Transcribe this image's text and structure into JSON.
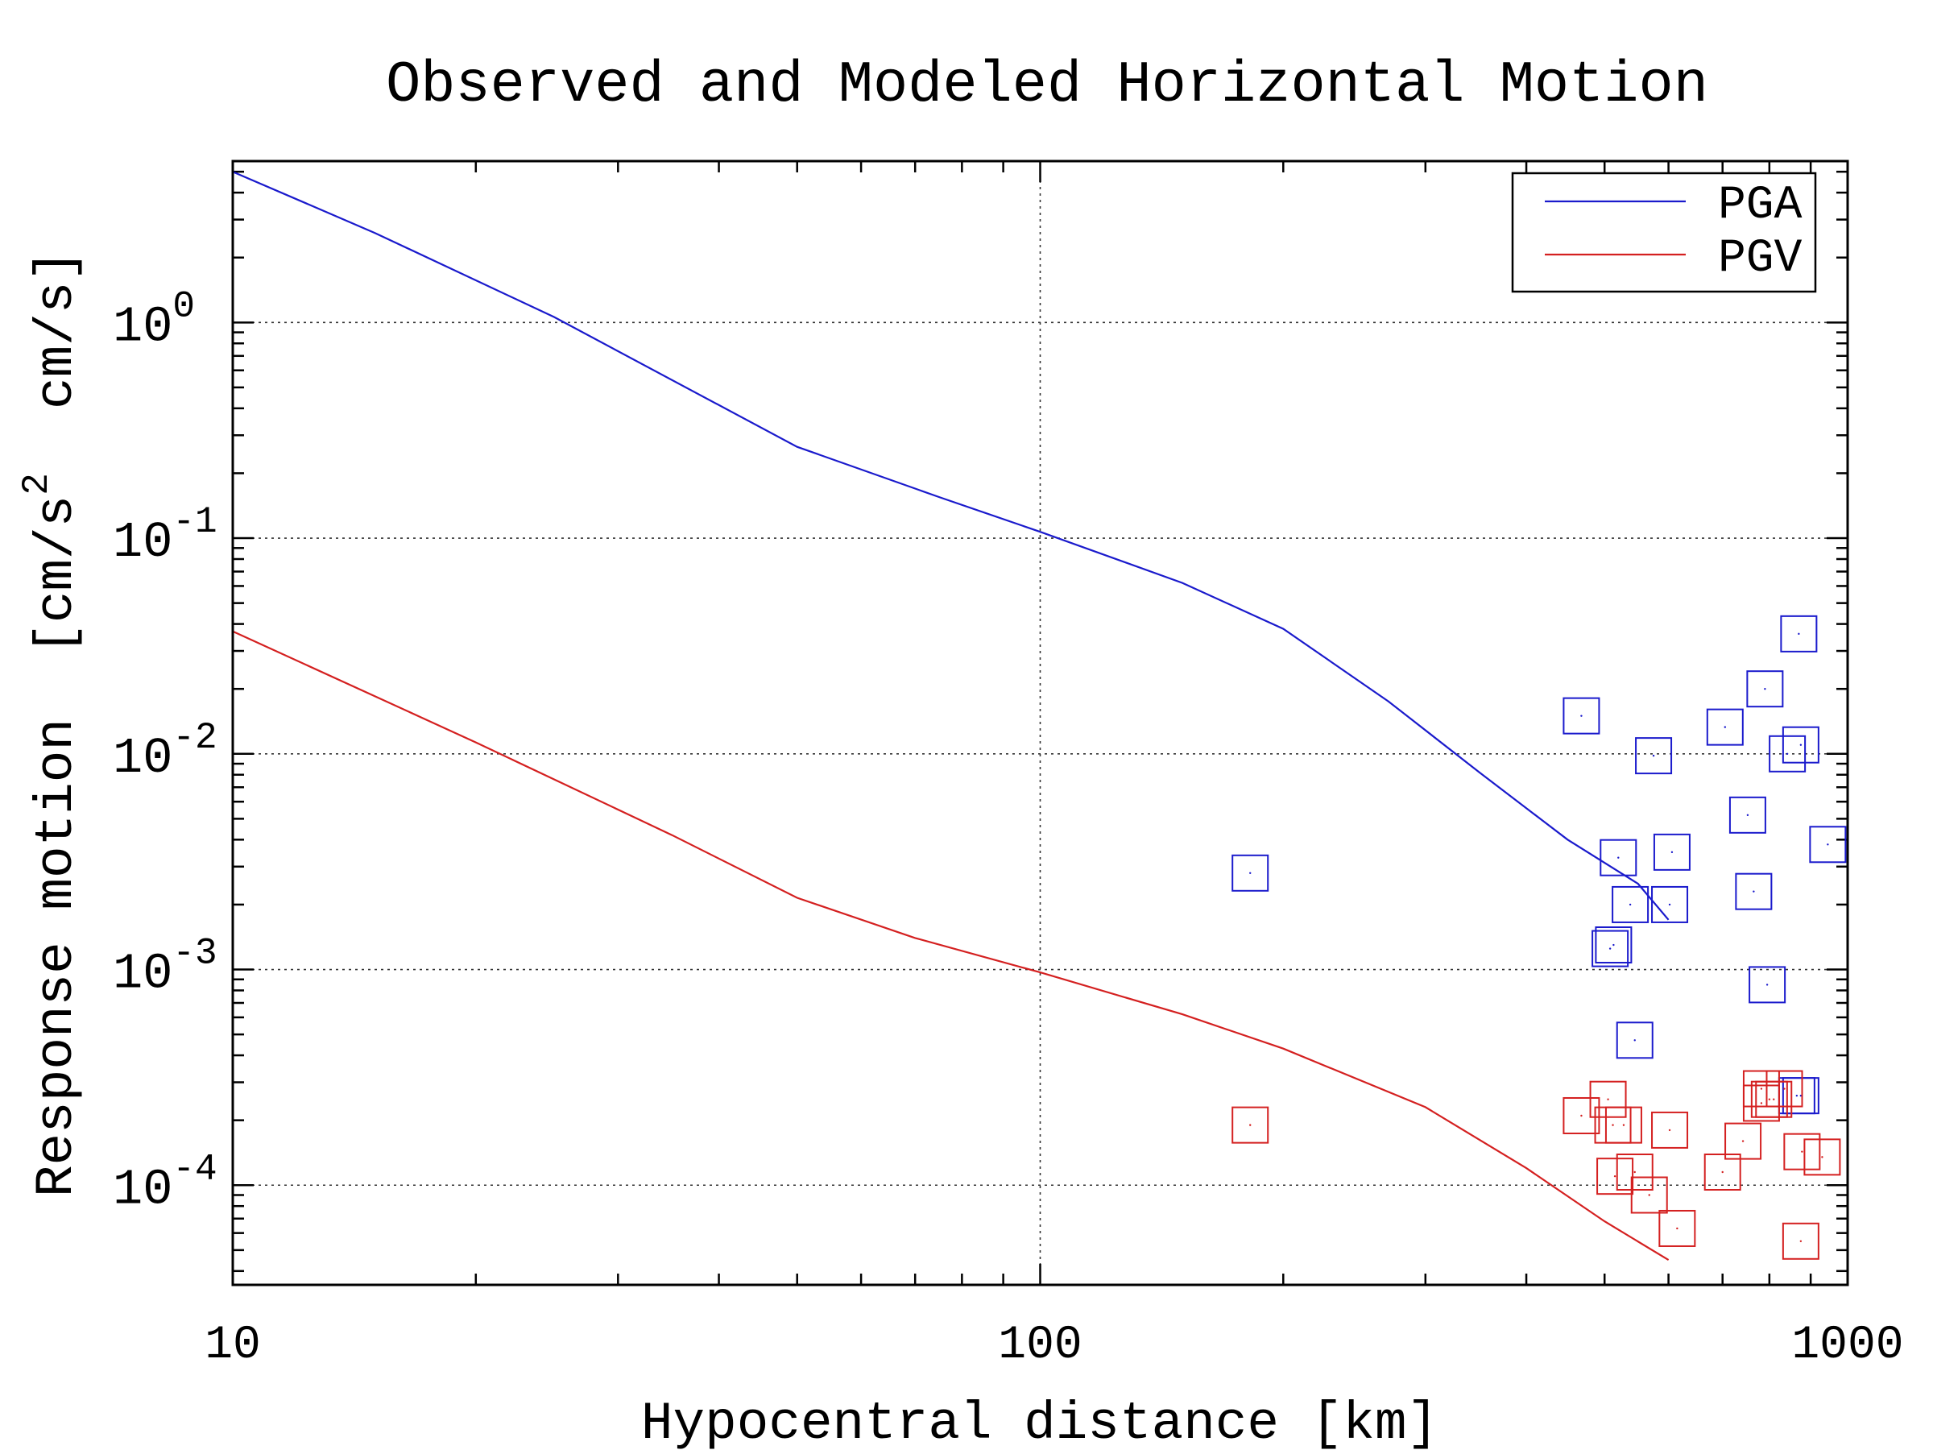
{
  "chart_data": {
    "type": "scatter",
    "title": "Observed and Modeled Horizontal Motion",
    "xlabel": "Hypocentral distance [km]",
    "ylabel_parts": [
      "Response motion  [cm/s",
      "2",
      "  cm/s]"
    ],
    "x_scale": "log",
    "y_scale": "log",
    "xlim": [
      10,
      1000
    ],
    "ylim": [
      3.45e-05,
      5.6
    ],
    "x_ticks": [
      {
        "value": 10,
        "label": "10"
      },
      {
        "value": 100,
        "label": "100"
      },
      {
        "value": 1000,
        "label": "1000"
      }
    ],
    "y_ticks": [
      {
        "value": 1,
        "base": "10",
        "exp": "0"
      },
      {
        "value": 0.1,
        "base": "10",
        "exp": "-1"
      },
      {
        "value": 0.01,
        "base": "10",
        "exp": "-2"
      },
      {
        "value": 0.001,
        "base": "10",
        "exp": "-3"
      },
      {
        "value": 0.0001,
        "base": "10",
        "exp": "-4"
      }
    ],
    "grid": true,
    "legend_position": "top-right",
    "series": [
      {
        "name": "PGA",
        "kind": "line",
        "color": "#1a1acc",
        "points": [
          [
            10,
            5.0
          ],
          [
            15,
            2.6
          ],
          [
            25,
            1.06
          ],
          [
            50,
            0.265
          ],
          [
            75,
            0.155
          ],
          [
            100,
            0.107
          ],
          [
            150,
            0.062
          ],
          [
            200,
            0.038
          ],
          [
            270,
            0.0175
          ],
          [
            350,
            0.0082
          ],
          [
            450,
            0.004
          ],
          [
            550,
            0.0025
          ],
          [
            600,
            0.0017
          ]
        ]
      },
      {
        "name": "PGV",
        "kind": "line",
        "color": "#d42020",
        "points": [
          [
            10,
            0.037
          ],
          [
            20,
            0.0113
          ],
          [
            35,
            0.0042
          ],
          [
            50,
            0.00215
          ],
          [
            70,
            0.0014
          ],
          [
            100,
            0.00097
          ],
          [
            150,
            0.00062
          ],
          [
            200,
            0.00043
          ],
          [
            300,
            0.00023
          ],
          [
            400,
            0.00012
          ],
          [
            500,
            6.8e-05
          ],
          [
            600,
            4.5e-05
          ]
        ]
      },
      {
        "name": "PGA observed",
        "kind": "markers",
        "color": "#1a1acc",
        "points": [
          [
            182,
            0.0028
          ],
          [
            468,
            0.015
          ],
          [
            520,
            0.0033
          ],
          [
            513,
            0.0013
          ],
          [
            508,
            0.00125
          ],
          [
            538,
            0.002
          ],
          [
            545,
            0.00047
          ],
          [
            575,
            0.0098
          ],
          [
            602,
            0.002
          ],
          [
            606,
            0.0035
          ],
          [
            705,
            0.0133
          ],
          [
            752,
            0.0052
          ],
          [
            765,
            0.0023
          ],
          [
            795,
            0.00085
          ],
          [
            790,
            0.02
          ],
          [
            842,
            0.01
          ],
          [
            875,
            0.011
          ],
          [
            870,
            0.036
          ],
          [
            945,
            0.0038
          ],
          [
            875,
            0.00026
          ],
          [
            865,
            0.00026
          ]
        ]
      },
      {
        "name": "PGV observed",
        "kind": "markers",
        "color": "#d42020",
        "points": [
          [
            182,
            0.00019
          ],
          [
            468,
            0.00021
          ],
          [
            505,
            0.00025
          ],
          [
            515,
            0.00011
          ],
          [
            512,
            0.00019
          ],
          [
            528,
            0.00019
          ],
          [
            545,
            0.000115
          ],
          [
            568,
            9e-05
          ],
          [
            602,
            0.00018
          ],
          [
            615,
            6.3e-05
          ],
          [
            700,
            0.000115
          ],
          [
            742,
            0.00016
          ],
          [
            782,
            0.00024
          ],
          [
            782,
            0.00028
          ],
          [
            800,
            0.00025
          ],
          [
            810,
            0.00025
          ],
          [
            835,
            0.00028
          ],
          [
            878,
            0.000143
          ],
          [
            875,
            5.5e-05
          ],
          [
            930,
            0.000135
          ]
        ]
      }
    ]
  }
}
